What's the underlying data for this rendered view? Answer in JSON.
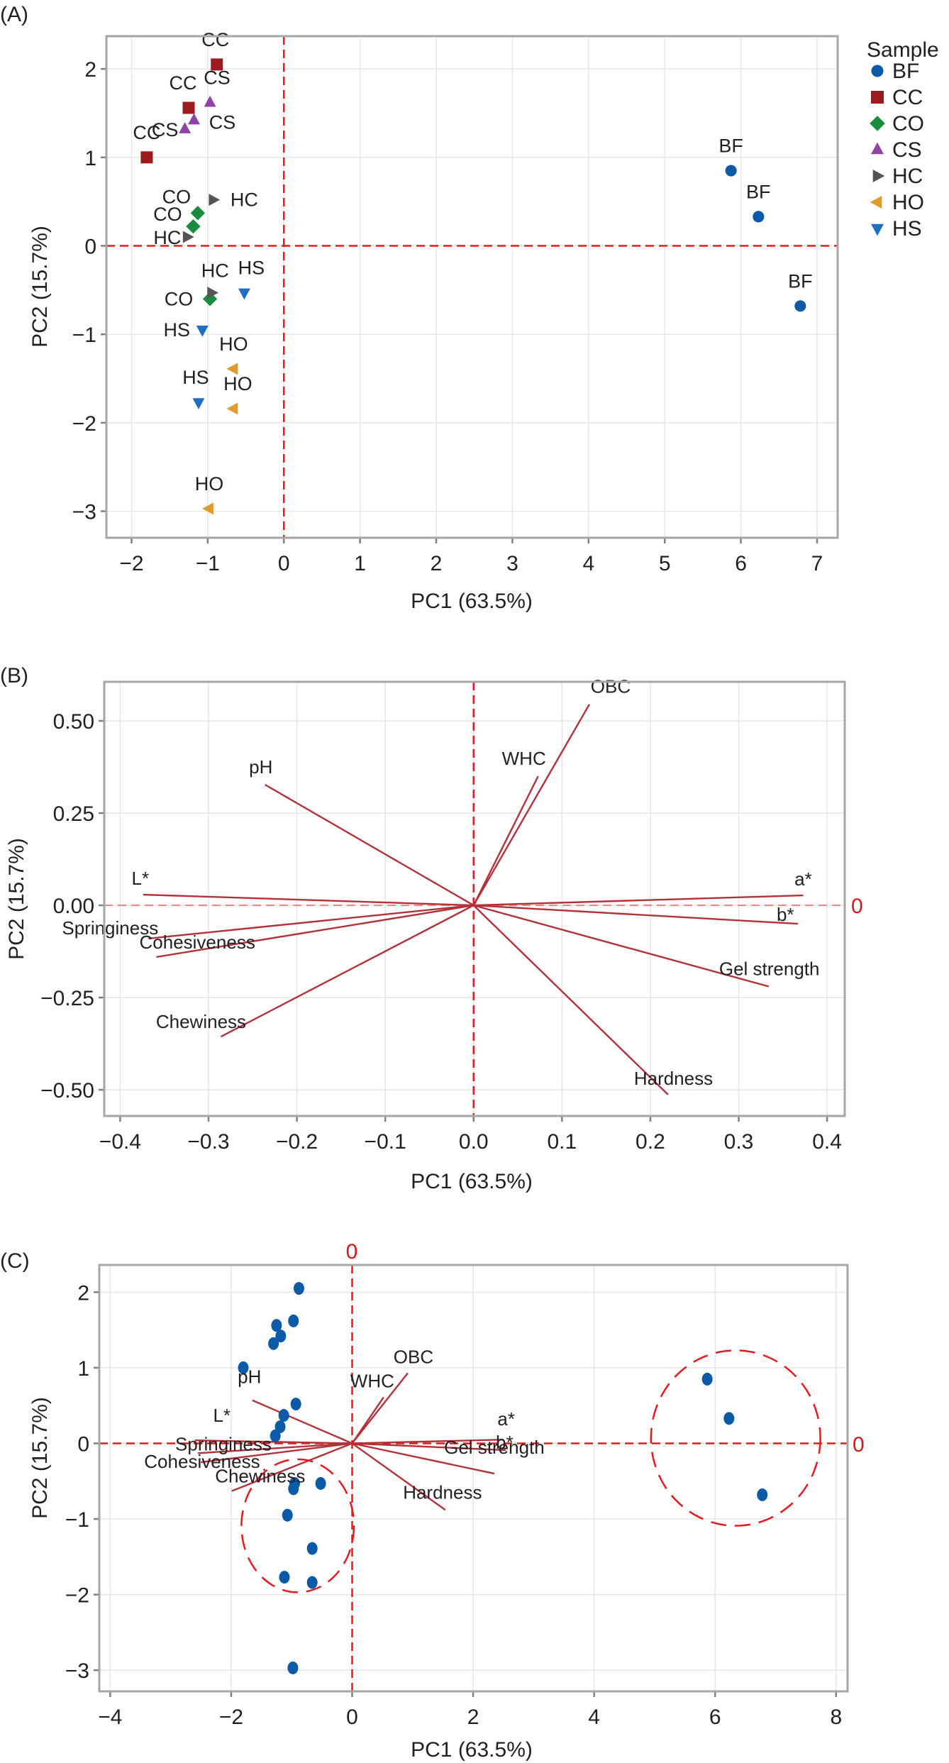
{
  "figure": {
    "panels": [
      "(A)",
      "(B)",
      "(C)"
    ]
  },
  "chart_data": [
    {
      "id": "A",
      "type": "scatter",
      "panel_label": "(A)",
      "title": "",
      "xlabel": "PC1 (63.5%)",
      "ylabel": "PC2 (15.7%)",
      "xlim": [
        -2.33,
        7.27
      ],
      "ylim": [
        -3.3,
        2.37
      ],
      "xticks": [
        -2,
        -1,
        0,
        1,
        2,
        3,
        4,
        5,
        6,
        7
      ],
      "yticks": [
        -3,
        -2,
        -1,
        0,
        1,
        2
      ],
      "grid": true,
      "reference_lines": {
        "x": 0,
        "y": 0
      },
      "legend": {
        "title": "Sample",
        "placement": "right",
        "entries": [
          {
            "name": "BF",
            "color": "#0b5aa8",
            "marker": "circle"
          },
          {
            "name": "CC",
            "color": "#9b1b1e",
            "marker": "square"
          },
          {
            "name": "CO",
            "color": "#1a8c3e",
            "marker": "diamond"
          },
          {
            "name": "CS",
            "color": "#8e44a5",
            "marker": "triangle-up"
          },
          {
            "name": "HC",
            "color": "#555555",
            "marker": "triangle-right"
          },
          {
            "name": "HO",
            "color": "#e09a2e",
            "marker": "triangle-left"
          },
          {
            "name": "HS",
            "color": "#1f6fc0",
            "marker": "triangle-down"
          }
        ]
      },
      "series": [
        {
          "name": "BF",
          "points": [
            {
              "x": 5.87,
              "y": 0.85
            },
            {
              "x": 6.23,
              "y": 0.33
            },
            {
              "x": 6.78,
              "y": -0.68
            }
          ]
        },
        {
          "name": "CC",
          "points": [
            {
              "x": -1.8,
              "y": 1.0
            },
            {
              "x": -1.25,
              "y": 1.56
            },
            {
              "x": -0.88,
              "y": 2.05
            }
          ]
        },
        {
          "name": "CO",
          "points": [
            {
              "x": -1.13,
              "y": 0.37
            },
            {
              "x": -1.19,
              "y": 0.22
            },
            {
              "x": -0.97,
              "y": -0.6
            }
          ]
        },
        {
          "name": "CS",
          "points": [
            {
              "x": -1.3,
              "y": 1.32
            },
            {
              "x": -1.18,
              "y": 1.42
            },
            {
              "x": -0.97,
              "y": 1.62
            }
          ]
        },
        {
          "name": "HC",
          "points": [
            {
              "x": -1.27,
              "y": 0.1
            },
            {
              "x": -0.93,
              "y": 0.52
            },
            {
              "x": -0.95,
              "y": -0.53
            }
          ]
        },
        {
          "name": "HO",
          "points": [
            {
              "x": -0.66,
              "y": -1.39
            },
            {
              "x": -0.66,
              "y": -1.84
            },
            {
              "x": -0.98,
              "y": -2.97
            }
          ]
        },
        {
          "name": "HS",
          "points": [
            {
              "x": -0.52,
              "y": -0.53
            },
            {
              "x": -1.07,
              "y": -0.95
            },
            {
              "x": -1.12,
              "y": -1.77
            }
          ]
        }
      ]
    },
    {
      "id": "B",
      "type": "scatter",
      "subtype": "loading-vectors",
      "panel_label": "(B)",
      "title": "",
      "xlabel": "PC1 (63.5%)",
      "ylabel": "PC2 (15.7%)",
      "xlim": [
        -0.418,
        0.42
      ],
      "ylim": [
        -0.571,
        0.606
      ],
      "xticks": [
        -0.4,
        -0.3,
        -0.2,
        -0.1,
        0.0,
        0.1,
        0.2,
        0.3,
        0.4
      ],
      "xtick_labels": [
        "−0.4",
        "−0.3",
        "−0.2",
        "−0.1",
        "0.0",
        "0.1",
        "0.2",
        "0.3",
        "0.4"
      ],
      "yticks": [
        -0.5,
        -0.25,
        0,
        0.25,
        0.5
      ],
      "ytick_labels": [
        "−0.50",
        "−0.25",
        "0.00",
        "0.25",
        "0.50"
      ],
      "grid": true,
      "reference_lines": {
        "x": 0,
        "y": 0
      },
      "reference_label": "0",
      "vector_color": "#b2323a",
      "vectors": [
        {
          "name": "OBC",
          "x": 0.131,
          "y": 0.545
        },
        {
          "name": "WHC",
          "x": 0.073,
          "y": 0.35
        },
        {
          "name": "pH",
          "x": -0.236,
          "y": 0.327
        },
        {
          "name": "L*",
          "x": -0.374,
          "y": 0.029
        },
        {
          "name": "Springiness",
          "x": -0.368,
          "y": -0.09
        },
        {
          "name": "Cohesiveness",
          "x": -0.359,
          "y": -0.14
        },
        {
          "name": "Chewiness",
          "x": -0.286,
          "y": -0.356
        },
        {
          "name": "a*",
          "x": 0.373,
          "y": 0.027
        },
        {
          "name": "b*",
          "x": 0.367,
          "y": -0.05
        },
        {
          "name": "Gel strength",
          "x": 0.334,
          "y": -0.22
        },
        {
          "name": "Hardness",
          "x": 0.22,
          "y": -0.513
        }
      ]
    },
    {
      "id": "C",
      "type": "scatter",
      "subtype": "biplot",
      "panel_label": "(C)",
      "title": "",
      "xlabel": "PC1 (63.5%)",
      "ylabel": "PC2 (15.7%)",
      "xlim": [
        -4.18,
        8.19
      ],
      "ylim": [
        -3.28,
        2.36
      ],
      "xticks": [
        -4,
        -2,
        0,
        2,
        4,
        6,
        8
      ],
      "yticks": [
        -3,
        -2,
        -1,
        0,
        1,
        2
      ],
      "grid": true,
      "reference_lines": {
        "x": 0,
        "y": 0
      },
      "reference_label": "0",
      "point_color": "#0b5aa8",
      "vector_color": "#b2323a",
      "ellipse_color": "#e41a1c",
      "points": [
        {
          "x": 5.87,
          "y": 0.85
        },
        {
          "x": 6.23,
          "y": 0.33
        },
        {
          "x": 6.78,
          "y": -0.68
        },
        {
          "x": -1.8,
          "y": 1.0
        },
        {
          "x": -1.25,
          "y": 1.56
        },
        {
          "x": -0.88,
          "y": 2.05
        },
        {
          "x": -1.13,
          "y": 0.37
        },
        {
          "x": -1.19,
          "y": 0.22
        },
        {
          "x": -0.97,
          "y": -0.6
        },
        {
          "x": -1.3,
          "y": 1.32
        },
        {
          "x": -1.18,
          "y": 1.42
        },
        {
          "x": -0.97,
          "y": 1.62
        },
        {
          "x": -1.27,
          "y": 0.1
        },
        {
          "x": -0.93,
          "y": 0.52
        },
        {
          "x": -0.95,
          "y": -0.53
        },
        {
          "x": -0.66,
          "y": -1.39
        },
        {
          "x": -0.66,
          "y": -1.84
        },
        {
          "x": -0.98,
          "y": -2.97
        },
        {
          "x": -0.52,
          "y": -0.53
        },
        {
          "x": -1.07,
          "y": -0.95
        },
        {
          "x": -1.12,
          "y": -1.77
        }
      ],
      "vectors": [
        {
          "name": "OBC",
          "x": 0.92,
          "y": 0.93
        },
        {
          "name": "WHC",
          "x": 0.52,
          "y": 0.61
        },
        {
          "name": "pH",
          "x": -1.65,
          "y": 0.57
        },
        {
          "name": "L*",
          "x": -2.6,
          "y": 0.04
        },
        {
          "name": "Springiness",
          "x": -2.55,
          "y": -0.13
        },
        {
          "name": "Cohesiveness",
          "x": -2.5,
          "y": -0.25
        },
        {
          "name": "Chewiness",
          "x": -1.99,
          "y": -0.63
        },
        {
          "name": "a*",
          "x": 2.5,
          "y": 0.05
        },
        {
          "name": "b*",
          "x": 2.54,
          "y": -0.09
        },
        {
          "name": "Gel strength",
          "x": 2.35,
          "y": -0.4
        },
        {
          "name": "Hardness",
          "x": 1.54,
          "y": -0.88
        }
      ],
      "ellipses": [
        {
          "name": "BF-group",
          "cx": 6.34,
          "cy": 0.07,
          "rx": 1.4,
          "ry": 1.16
        },
        {
          "name": "HO-HS-group",
          "cx": -0.9,
          "cy": -1.09,
          "rx": 0.93,
          "ry": 0.88
        }
      ]
    }
  ]
}
